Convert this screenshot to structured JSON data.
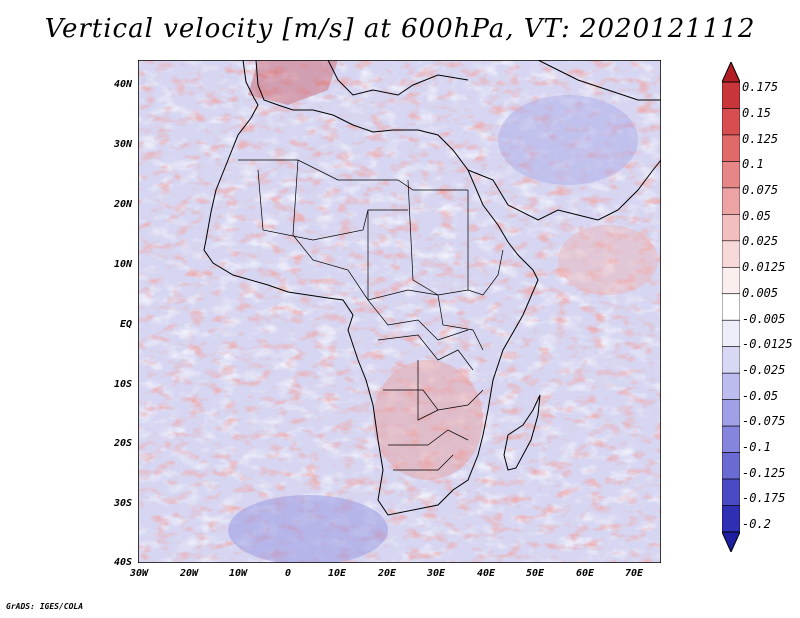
{
  "title": "Vertical velocity [m/s] at 600hPa, VT: 2020121112",
  "y_axis_labels": [
    "40N",
    "30N",
    "20N",
    "10N",
    "EQ",
    "10S",
    "20S",
    "30S",
    "40S"
  ],
  "x_axis_labels": [
    "30W",
    "20W",
    "10W",
    "0",
    "10E",
    "20E",
    "30E",
    "40E",
    "50E",
    "60E",
    "70E"
  ],
  "colorbar": {
    "labels": [
      "0.175",
      "0.15",
      "0.125",
      "0.1",
      "0.075",
      "0.05",
      "0.025",
      "0.0125",
      "0.005",
      "-0.005",
      "-0.0125",
      "-0.025",
      "-0.05",
      "-0.075",
      "-0.1",
      "-0.125",
      "-0.175",
      "-0.2"
    ],
    "colors": [
      "#b31e24",
      "#c9363a",
      "#d84d4f",
      "#e06a6a",
      "#e78686",
      "#eda3a3",
      "#f2bebe",
      "#f7d8d8",
      "#fbeeee",
      "#ffffff",
      "#eeeefb",
      "#d8d8f5",
      "#bcbcee",
      "#a0a0e6",
      "#8585dd",
      "#6a6ad3",
      "#4a4ac4",
      "#2f2fb3",
      "#1e1ea0"
    ]
  },
  "credit": "GrADS: IGES/COLA"
}
